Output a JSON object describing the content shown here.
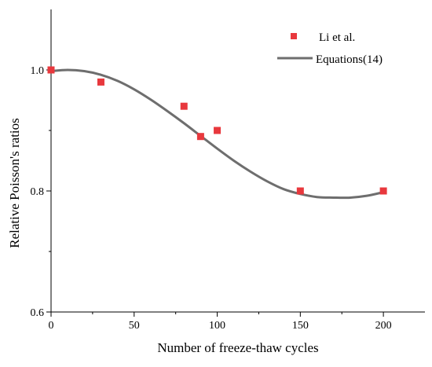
{
  "chart_data": {
    "type": "scatter",
    "xlabel": "Number of freeze-thaw cycles",
    "ylabel": "Relative  Poisson's  ratios",
    "xlim": [
      0,
      225
    ],
    "ylim": [
      0.6,
      1.1
    ],
    "xticks": [
      0,
      50,
      100,
      150,
      200
    ],
    "yticks": [
      0.6,
      0.8,
      1.0
    ],
    "xtick_labels": [
      "0",
      "50",
      "100",
      "150",
      "200"
    ],
    "ytick_labels": [
      "0.6",
      "0.8",
      "1.0"
    ],
    "legend_position": "top-right",
    "series": [
      {
        "name": "Li et al.",
        "kind": "scatter",
        "color": "#e8383d",
        "marker": "square",
        "x": [
          0,
          30,
          80,
          90,
          100,
          150,
          200
        ],
        "y": [
          1.0,
          0.98,
          0.94,
          0.89,
          0.9,
          0.8,
          0.8
        ]
      },
      {
        "name": "Equations(14)",
        "kind": "line",
        "color": "#6e6e6e",
        "x": [
          0,
          10,
          20,
          30,
          40,
          50,
          60,
          70,
          80,
          90,
          100,
          110,
          120,
          130,
          140,
          150,
          160,
          170,
          180,
          190,
          200
        ],
        "y": [
          0.998,
          1.0,
          0.998,
          0.992,
          0.982,
          0.968,
          0.951,
          0.932,
          0.912,
          0.891,
          0.87,
          0.85,
          0.832,
          0.816,
          0.803,
          0.795,
          0.79,
          0.789,
          0.789,
          0.792,
          0.798
        ]
      }
    ]
  }
}
